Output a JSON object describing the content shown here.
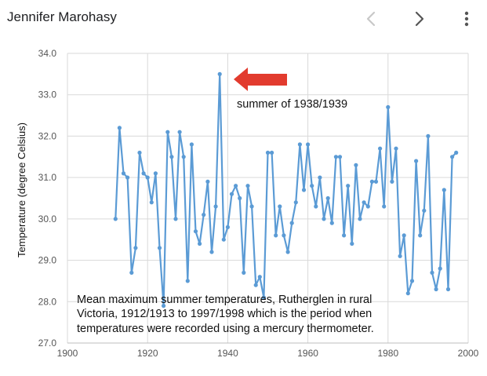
{
  "header": {
    "title": "Jennifer Marohasy",
    "prev_icon": "chevron-left-icon",
    "next_icon": "chevron-right-icon",
    "menu_icon": "more-vert-icon"
  },
  "colors": {
    "line": "#5b9bd5",
    "arrow": "#e23b2e",
    "grid": "#d9d9d9"
  },
  "chart_data": {
    "type": "line",
    "title": "",
    "xlabel": "",
    "ylabel": "Temperature (degree Celsius)",
    "xlim": [
      1900,
      2000
    ],
    "ylim": [
      27.0,
      34.0
    ],
    "x_ticks": [
      1900,
      1920,
      1940,
      1960,
      1980,
      2000
    ],
    "y_ticks": [
      27.0,
      28.0,
      29.0,
      30.0,
      31.0,
      32.0,
      33.0,
      34.0
    ],
    "grid": true,
    "series": [
      {
        "x": [
          1912,
          1913,
          1914,
          1915,
          1916,
          1917,
          1918,
          1919,
          1920,
          1921,
          1922,
          1923,
          1924,
          1925,
          1926,
          1927,
          1928,
          1929,
          1930,
          1931,
          1932,
          1933,
          1934,
          1935,
          1936,
          1937,
          1938,
          1939,
          1940,
          1941,
          1942,
          1943,
          1944,
          1945,
          1946,
          1947,
          1948,
          1949,
          1950,
          1951,
          1952,
          1953,
          1954,
          1955,
          1956,
          1957,
          1958,
          1959,
          1960,
          1961,
          1962,
          1963,
          1964,
          1965,
          1966,
          1967,
          1968,
          1969,
          1970,
          1971,
          1972,
          1973,
          1974,
          1975,
          1976,
          1977,
          1978,
          1979,
          1980,
          1981,
          1982,
          1983,
          1984,
          1985,
          1986,
          1987,
          1988,
          1989,
          1990,
          1991,
          1992,
          1993,
          1994,
          1995,
          1996,
          1997
        ],
        "y": [
          30.0,
          32.2,
          31.1,
          31.0,
          28.7,
          29.3,
          31.6,
          31.1,
          31.0,
          30.4,
          31.1,
          29.3,
          27.9,
          32.1,
          31.5,
          30.0,
          32.1,
          31.5,
          28.5,
          31.8,
          29.7,
          29.4,
          30.1,
          30.9,
          29.2,
          30.3,
          33.5,
          29.5,
          29.8,
          30.6,
          30.8,
          30.5,
          28.7,
          30.8,
          30.3,
          28.4,
          28.6,
          28.1,
          31.6,
          31.6,
          29.6,
          30.3,
          29.6,
          29.2,
          29.9,
          30.4,
          31.8,
          30.7,
          31.8,
          30.8,
          30.3,
          31.0,
          30.0,
          30.5,
          29.9,
          31.5,
          31.5,
          29.6,
          30.8,
          29.4,
          31.3,
          30.0,
          30.4,
          30.3,
          30.9,
          30.9,
          31.7,
          30.3,
          32.7,
          30.9,
          31.7,
          29.1,
          29.6,
          28.2,
          28.5,
          31.4,
          29.6,
          30.2,
          32.0,
          28.7,
          28.3,
          28.8,
          30.7,
          28.3,
          31.5,
          31.6
        ]
      }
    ],
    "annotations": {
      "arrow_label": "summer of 1938/1939",
      "caption_lines": [
        "Mean maximum summer temperatures, Rutherglen in rural",
        "Victoria, 1912/1913 to 1997/1998 which is the period when",
        "temperatures were recorded using a mercury thermometer."
      ]
    }
  }
}
